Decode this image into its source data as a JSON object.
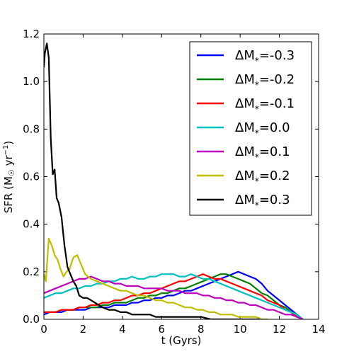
{
  "chart_data": {
    "type": "line",
    "xlabel": "t (Gyrs)",
    "ylabel": "SFR (M",
    "ylabel_sun": "☉",
    "ylabel_unit": " yr",
    "ylabel_exp": "−1",
    "ylabel_close": ")",
    "xlim": [
      0,
      14
    ],
    "ylim": [
      0,
      1.2
    ],
    "xticks": [
      "0",
      "2",
      "4",
      "6",
      "8",
      "10",
      "12",
      "14"
    ],
    "yticks": [
      "0.0",
      "0.2",
      "0.4",
      "0.6",
      "0.8",
      "1.0",
      "1.2"
    ],
    "legend_position": "top-right",
    "series": [
      {
        "name": "ΔM",
        "sub": "*",
        "value": "=-0.3",
        "color": "#0000ff",
        "x": [
          0.0,
          0.3,
          0.6,
          0.9,
          1.2,
          1.5,
          1.8,
          2.1,
          2.4,
          2.7,
          3.0,
          3.3,
          3.6,
          3.9,
          4.2,
          4.5,
          4.8,
          5.1,
          5.4,
          5.7,
          6.0,
          6.3,
          6.6,
          6.9,
          7.2,
          7.5,
          7.8,
          8.1,
          8.4,
          8.7,
          9.0,
          9.3,
          9.6,
          9.9,
          10.2,
          10.5,
          10.8,
          11.1,
          11.4,
          11.7,
          12.0,
          12.3,
          12.6,
          12.9,
          13.2
        ],
        "y": [
          0.02,
          0.03,
          0.03,
          0.03,
          0.04,
          0.04,
          0.04,
          0.04,
          0.05,
          0.05,
          0.05,
          0.05,
          0.06,
          0.06,
          0.06,
          0.07,
          0.07,
          0.08,
          0.08,
          0.09,
          0.09,
          0.1,
          0.1,
          0.11,
          0.12,
          0.12,
          0.13,
          0.14,
          0.15,
          0.16,
          0.17,
          0.18,
          0.19,
          0.2,
          0.19,
          0.18,
          0.17,
          0.15,
          0.12,
          0.1,
          0.08,
          0.06,
          0.04,
          0.02,
          0.0
        ]
      },
      {
        "name": "ΔM",
        "sub": "*",
        "value": "=-0.2",
        "color": "#008000",
        "x": [
          0.0,
          0.3,
          0.6,
          0.9,
          1.2,
          1.5,
          1.8,
          2.1,
          2.4,
          2.7,
          3.0,
          3.3,
          3.6,
          3.9,
          4.2,
          4.5,
          4.8,
          5.1,
          5.4,
          5.7,
          6.0,
          6.3,
          6.6,
          6.9,
          7.2,
          7.5,
          7.8,
          8.1,
          8.4,
          8.7,
          9.0,
          9.3,
          9.6,
          9.9,
          10.2,
          10.5,
          10.8,
          11.1,
          11.4,
          11.7,
          12.0,
          12.3,
          12.6,
          12.9,
          13.2
        ],
        "y": [
          0.03,
          0.03,
          0.03,
          0.04,
          0.04,
          0.04,
          0.05,
          0.05,
          0.05,
          0.05,
          0.06,
          0.06,
          0.07,
          0.07,
          0.07,
          0.08,
          0.09,
          0.09,
          0.1,
          0.1,
          0.11,
          0.11,
          0.12,
          0.13,
          0.13,
          0.14,
          0.15,
          0.16,
          0.17,
          0.18,
          0.19,
          0.19,
          0.18,
          0.17,
          0.16,
          0.15,
          0.13,
          0.11,
          0.1,
          0.08,
          0.06,
          0.05,
          0.03,
          0.02,
          0.0
        ]
      },
      {
        "name": "ΔM",
        "sub": "*",
        "value": "=-0.1",
        "color": "#ff0000",
        "x": [
          0.0,
          0.3,
          0.6,
          0.9,
          1.2,
          1.5,
          1.8,
          2.1,
          2.4,
          2.7,
          3.0,
          3.3,
          3.6,
          3.9,
          4.2,
          4.5,
          4.8,
          5.1,
          5.4,
          5.7,
          6.0,
          6.3,
          6.6,
          6.9,
          7.2,
          7.5,
          7.8,
          8.1,
          8.4,
          8.7,
          9.0,
          9.3,
          9.6,
          9.9,
          10.2,
          10.5,
          10.8,
          11.1,
          11.4,
          11.7,
          12.0,
          12.3,
          12.6,
          12.9,
          13.2
        ],
        "y": [
          0.03,
          0.03,
          0.03,
          0.04,
          0.04,
          0.04,
          0.05,
          0.05,
          0.06,
          0.06,
          0.07,
          0.07,
          0.08,
          0.08,
          0.09,
          0.1,
          0.1,
          0.11,
          0.11,
          0.12,
          0.13,
          0.14,
          0.15,
          0.16,
          0.16,
          0.17,
          0.18,
          0.19,
          0.18,
          0.17,
          0.17,
          0.16,
          0.15,
          0.14,
          0.13,
          0.12,
          0.11,
          0.1,
          0.08,
          0.07,
          0.06,
          0.04,
          0.03,
          0.01,
          0.0
        ]
      },
      {
        "name": "ΔM",
        "sub": "*",
        "value": "=0.0",
        "color": "#00bfbf",
        "x": [
          0.0,
          0.3,
          0.6,
          0.9,
          1.2,
          1.5,
          1.8,
          2.1,
          2.4,
          2.7,
          3.0,
          3.3,
          3.6,
          3.9,
          4.2,
          4.5,
          4.8,
          5.1,
          5.4,
          5.7,
          6.0,
          6.3,
          6.6,
          6.9,
          7.2,
          7.5,
          7.8,
          8.1,
          8.4,
          8.7,
          9.0,
          9.3,
          9.6,
          9.9,
          10.2,
          10.5,
          10.8,
          11.1,
          11.4,
          11.7,
          12.0,
          12.3,
          12.6,
          12.9,
          13.2
        ],
        "y": [
          0.09,
          0.1,
          0.11,
          0.11,
          0.12,
          0.13,
          0.13,
          0.14,
          0.14,
          0.15,
          0.15,
          0.16,
          0.16,
          0.17,
          0.17,
          0.18,
          0.17,
          0.17,
          0.18,
          0.18,
          0.19,
          0.19,
          0.19,
          0.18,
          0.18,
          0.19,
          0.18,
          0.17,
          0.17,
          0.16,
          0.15,
          0.14,
          0.13,
          0.12,
          0.11,
          0.1,
          0.09,
          0.08,
          0.07,
          0.06,
          0.05,
          0.04,
          0.03,
          0.02,
          0.0
        ]
      },
      {
        "name": "ΔM",
        "sub": "*",
        "value": "=0.1",
        "color": "#bf00bf",
        "x": [
          0.0,
          0.3,
          0.6,
          0.9,
          1.2,
          1.5,
          1.8,
          2.1,
          2.4,
          2.7,
          3.0,
          3.3,
          3.6,
          3.9,
          4.2,
          4.5,
          4.8,
          5.1,
          5.4,
          5.7,
          6.0,
          6.3,
          6.6,
          6.9,
          7.2,
          7.5,
          7.8,
          8.1,
          8.4,
          8.7,
          9.0,
          9.3,
          9.6,
          9.9,
          10.2,
          10.5,
          10.8,
          11.1,
          11.4,
          11.7,
          12.0,
          12.3,
          12.6,
          12.9,
          13.2
        ],
        "y": [
          0.11,
          0.12,
          0.13,
          0.14,
          0.15,
          0.16,
          0.17,
          0.17,
          0.18,
          0.17,
          0.16,
          0.16,
          0.15,
          0.15,
          0.14,
          0.14,
          0.14,
          0.13,
          0.13,
          0.13,
          0.13,
          0.12,
          0.12,
          0.12,
          0.11,
          0.11,
          0.11,
          0.1,
          0.1,
          0.09,
          0.09,
          0.08,
          0.08,
          0.07,
          0.07,
          0.06,
          0.06,
          0.05,
          0.04,
          0.04,
          0.03,
          0.02,
          0.02,
          0.01,
          0.0
        ]
      },
      {
        "name": "ΔM",
        "sub": "*",
        "value": "=0.2",
        "color": "#bfbf00",
        "x": [
          0.0,
          0.1,
          0.25,
          0.4,
          0.55,
          0.7,
          0.85,
          1.0,
          1.15,
          1.3,
          1.5,
          1.7,
          1.9,
          2.1,
          2.4,
          2.7,
          3.0,
          3.3,
          3.6,
          3.9,
          4.2,
          4.5,
          4.8,
          5.1,
          5.4,
          5.7,
          6.0,
          6.3,
          6.6,
          6.9,
          7.2,
          7.5,
          7.8,
          8.1,
          8.4,
          8.7,
          9.0,
          9.3,
          9.6,
          9.9,
          10.2,
          10.5,
          10.8,
          11.1,
          11.4
        ],
        "y": [
          0.19,
          0.16,
          0.34,
          0.31,
          0.27,
          0.25,
          0.21,
          0.18,
          0.2,
          0.21,
          0.26,
          0.27,
          0.23,
          0.19,
          0.17,
          0.16,
          0.15,
          0.14,
          0.13,
          0.12,
          0.12,
          0.11,
          0.1,
          0.1,
          0.09,
          0.08,
          0.08,
          0.07,
          0.07,
          0.06,
          0.05,
          0.05,
          0.04,
          0.04,
          0.03,
          0.03,
          0.02,
          0.02,
          0.02,
          0.01,
          0.01,
          0.01,
          0.01,
          0.0,
          0.0
        ]
      },
      {
        "name": "ΔM",
        "sub": "*",
        "value": "=0.3",
        "color": "#000000",
        "x": [
          0.0,
          0.05,
          0.15,
          0.25,
          0.35,
          0.45,
          0.55,
          0.65,
          0.75,
          0.9,
          1.05,
          1.2,
          1.35,
          1.5,
          1.65,
          1.8,
          2.0,
          2.2,
          2.4,
          2.6,
          2.8,
          3.0,
          3.3,
          3.6,
          3.9,
          4.2,
          4.5,
          4.8,
          5.1,
          5.4,
          5.7,
          6.0,
          6.5,
          7.0,
          7.5,
          8.0,
          8.5,
          9.0,
          9.5,
          10.0,
          10.5,
          11.0
        ],
        "y": [
          1.06,
          1.12,
          1.16,
          1.1,
          0.76,
          0.61,
          0.63,
          0.51,
          0.49,
          0.43,
          0.31,
          0.22,
          0.19,
          0.16,
          0.14,
          0.1,
          0.09,
          0.09,
          0.08,
          0.07,
          0.06,
          0.05,
          0.04,
          0.04,
          0.03,
          0.03,
          0.02,
          0.02,
          0.02,
          0.02,
          0.01,
          0.01,
          0.01,
          0.01,
          0.01,
          0.01,
          0.0,
          0.0,
          0.0,
          0.0,
          0.0,
          0.0
        ]
      }
    ]
  }
}
